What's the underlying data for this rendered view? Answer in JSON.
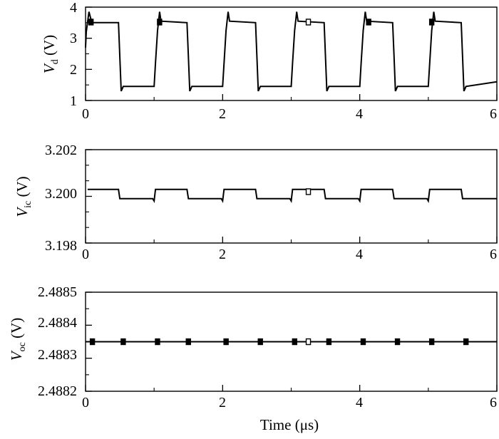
{
  "figure": {
    "xlabel": "Time (μs)",
    "xticks": [
      "0",
      "2",
      "4",
      "6"
    ]
  },
  "panels": [
    {
      "ylabel_main": "V",
      "ylabel_sub": "d",
      "ylabel_unit": " (V)",
      "yticks": [
        "1",
        "2",
        "3",
        "4"
      ]
    },
    {
      "ylabel_main": "V",
      "ylabel_sub": "ic",
      "ylabel_unit": " (V)",
      "yticks": [
        "3.198",
        "3.200",
        "3.202"
      ]
    },
    {
      "ylabel_main": "V",
      "ylabel_sub": "oc",
      "ylabel_unit": " (V)",
      "yticks": [
        "2.4882",
        "2.4883",
        "2.4884",
        "2.4885"
      ]
    }
  ],
  "chart_data": [
    {
      "type": "line",
      "xlabel": "",
      "ylabel": "Vd (V)",
      "xlim": [
        0,
        6
      ],
      "ylim": [
        1,
        4
      ],
      "xticks": [
        0,
        2,
        4,
        6
      ],
      "yticks": [
        1,
        2,
        3,
        4
      ],
      "series": [
        {
          "x": [
            0,
            0.01,
            0.05,
            0.08,
            0.1,
            0.48,
            0.5,
            0.52,
            0.55,
            1.0,
            1.02,
            1.05,
            1.08,
            1.1,
            1.48,
            1.5,
            1.52,
            1.55,
            2.0,
            2.02,
            2.05,
            2.08,
            2.1,
            2.48,
            2.5,
            2.52,
            2.55,
            3.0,
            3.02,
            3.05,
            3.08,
            3.1,
            3.48,
            3.5,
            3.52,
            3.55,
            4.0,
            4.02,
            4.05,
            4.08,
            4.1,
            4.48,
            4.5,
            4.52,
            4.55,
            5.0,
            5.02,
            5.05,
            5.08,
            5.1,
            5.48,
            5.5,
            5.52,
            5.55,
            6.0
          ],
          "y": [
            2.7,
            3.2,
            3.85,
            3.6,
            3.5,
            3.5,
            2.4,
            1.3,
            1.45,
            1.45,
            2.2,
            3.25,
            3.85,
            3.55,
            3.5,
            2.4,
            1.3,
            1.45,
            1.45,
            2.2,
            3.25,
            3.85,
            3.55,
            3.5,
            2.4,
            1.3,
            1.45,
            1.45,
            2.2,
            3.25,
            3.85,
            3.55,
            3.5,
            2.4,
            1.3,
            1.45,
            1.45,
            2.2,
            3.25,
            3.85,
            3.55,
            3.5,
            2.4,
            1.3,
            1.45,
            1.45,
            2.2,
            3.25,
            3.85,
            3.55,
            3.5,
            2.4,
            1.3,
            1.45,
            1.6
          ]
        },
        {
          "marker": "square",
          "x": [
            0.08,
            1.08,
            3.25,
            4.13,
            5.05
          ],
          "y": [
            3.52,
            3.52,
            3.52,
            3.52,
            3.52
          ]
        }
      ]
    },
    {
      "type": "line",
      "xlabel": "",
      "ylabel": "Vic (V)",
      "xlim": [
        0,
        6
      ],
      "ylim": [
        3.198,
        3.202
      ],
      "xticks": [
        0,
        2,
        4,
        6
      ],
      "yticks": [
        3.198,
        3.2,
        3.202
      ],
      "series": [
        {
          "x": [
            0.03,
            0.48,
            0.5,
            0.98,
            1.0,
            1.02,
            1.05,
            1.48,
            1.5,
            1.98,
            2.0,
            2.02,
            2.05,
            2.48,
            2.5,
            2.98,
            3.0,
            3.02,
            3.05,
            3.48,
            3.5,
            3.98,
            4.0,
            4.02,
            4.05,
            4.48,
            4.5,
            4.98,
            5.0,
            5.02,
            5.05,
            5.48,
            5.5,
            6.0
          ],
          "y": [
            3.2003,
            3.2003,
            3.1999,
            3.1999,
            3.1998,
            3.2003,
            3.2003,
            3.2003,
            3.1999,
            3.1999,
            3.1998,
            3.2003,
            3.2003,
            3.2003,
            3.1999,
            3.1999,
            3.1998,
            3.2003,
            3.2003,
            3.2003,
            3.1999,
            3.1999,
            3.1998,
            3.2003,
            3.2003,
            3.2003,
            3.1999,
            3.1999,
            3.1998,
            3.2003,
            3.2003,
            3.2003,
            3.1999,
            3.1999
          ]
        },
        {
          "marker": "square",
          "x": [
            3.25
          ],
          "y": [
            3.2002
          ]
        }
      ]
    },
    {
      "type": "line",
      "xlabel": "Time (μs)",
      "ylabel": "Voc (V)",
      "xlim": [
        0,
        6
      ],
      "ylim": [
        2.4882,
        2.4885
      ],
      "xticks": [
        0,
        2,
        4,
        6
      ],
      "yticks": [
        2.4882,
        2.4883,
        2.4884,
        2.4885
      ],
      "series": [
        {
          "x": [
            0,
            6
          ],
          "y": [
            2.48835,
            2.48835
          ]
        },
        {
          "marker": "square",
          "x": [
            0.1,
            0.55,
            1.05,
            1.5,
            2.05,
            2.55,
            3.05,
            3.25,
            3.55,
            4.05,
            4.55,
            5.05,
            5.55
          ],
          "y": [
            2.48835,
            2.48835,
            2.48835,
            2.48835,
            2.48835,
            2.48835,
            2.48835,
            2.48835,
            2.48835,
            2.48835,
            2.48835,
            2.48835,
            2.48835
          ]
        }
      ]
    }
  ]
}
